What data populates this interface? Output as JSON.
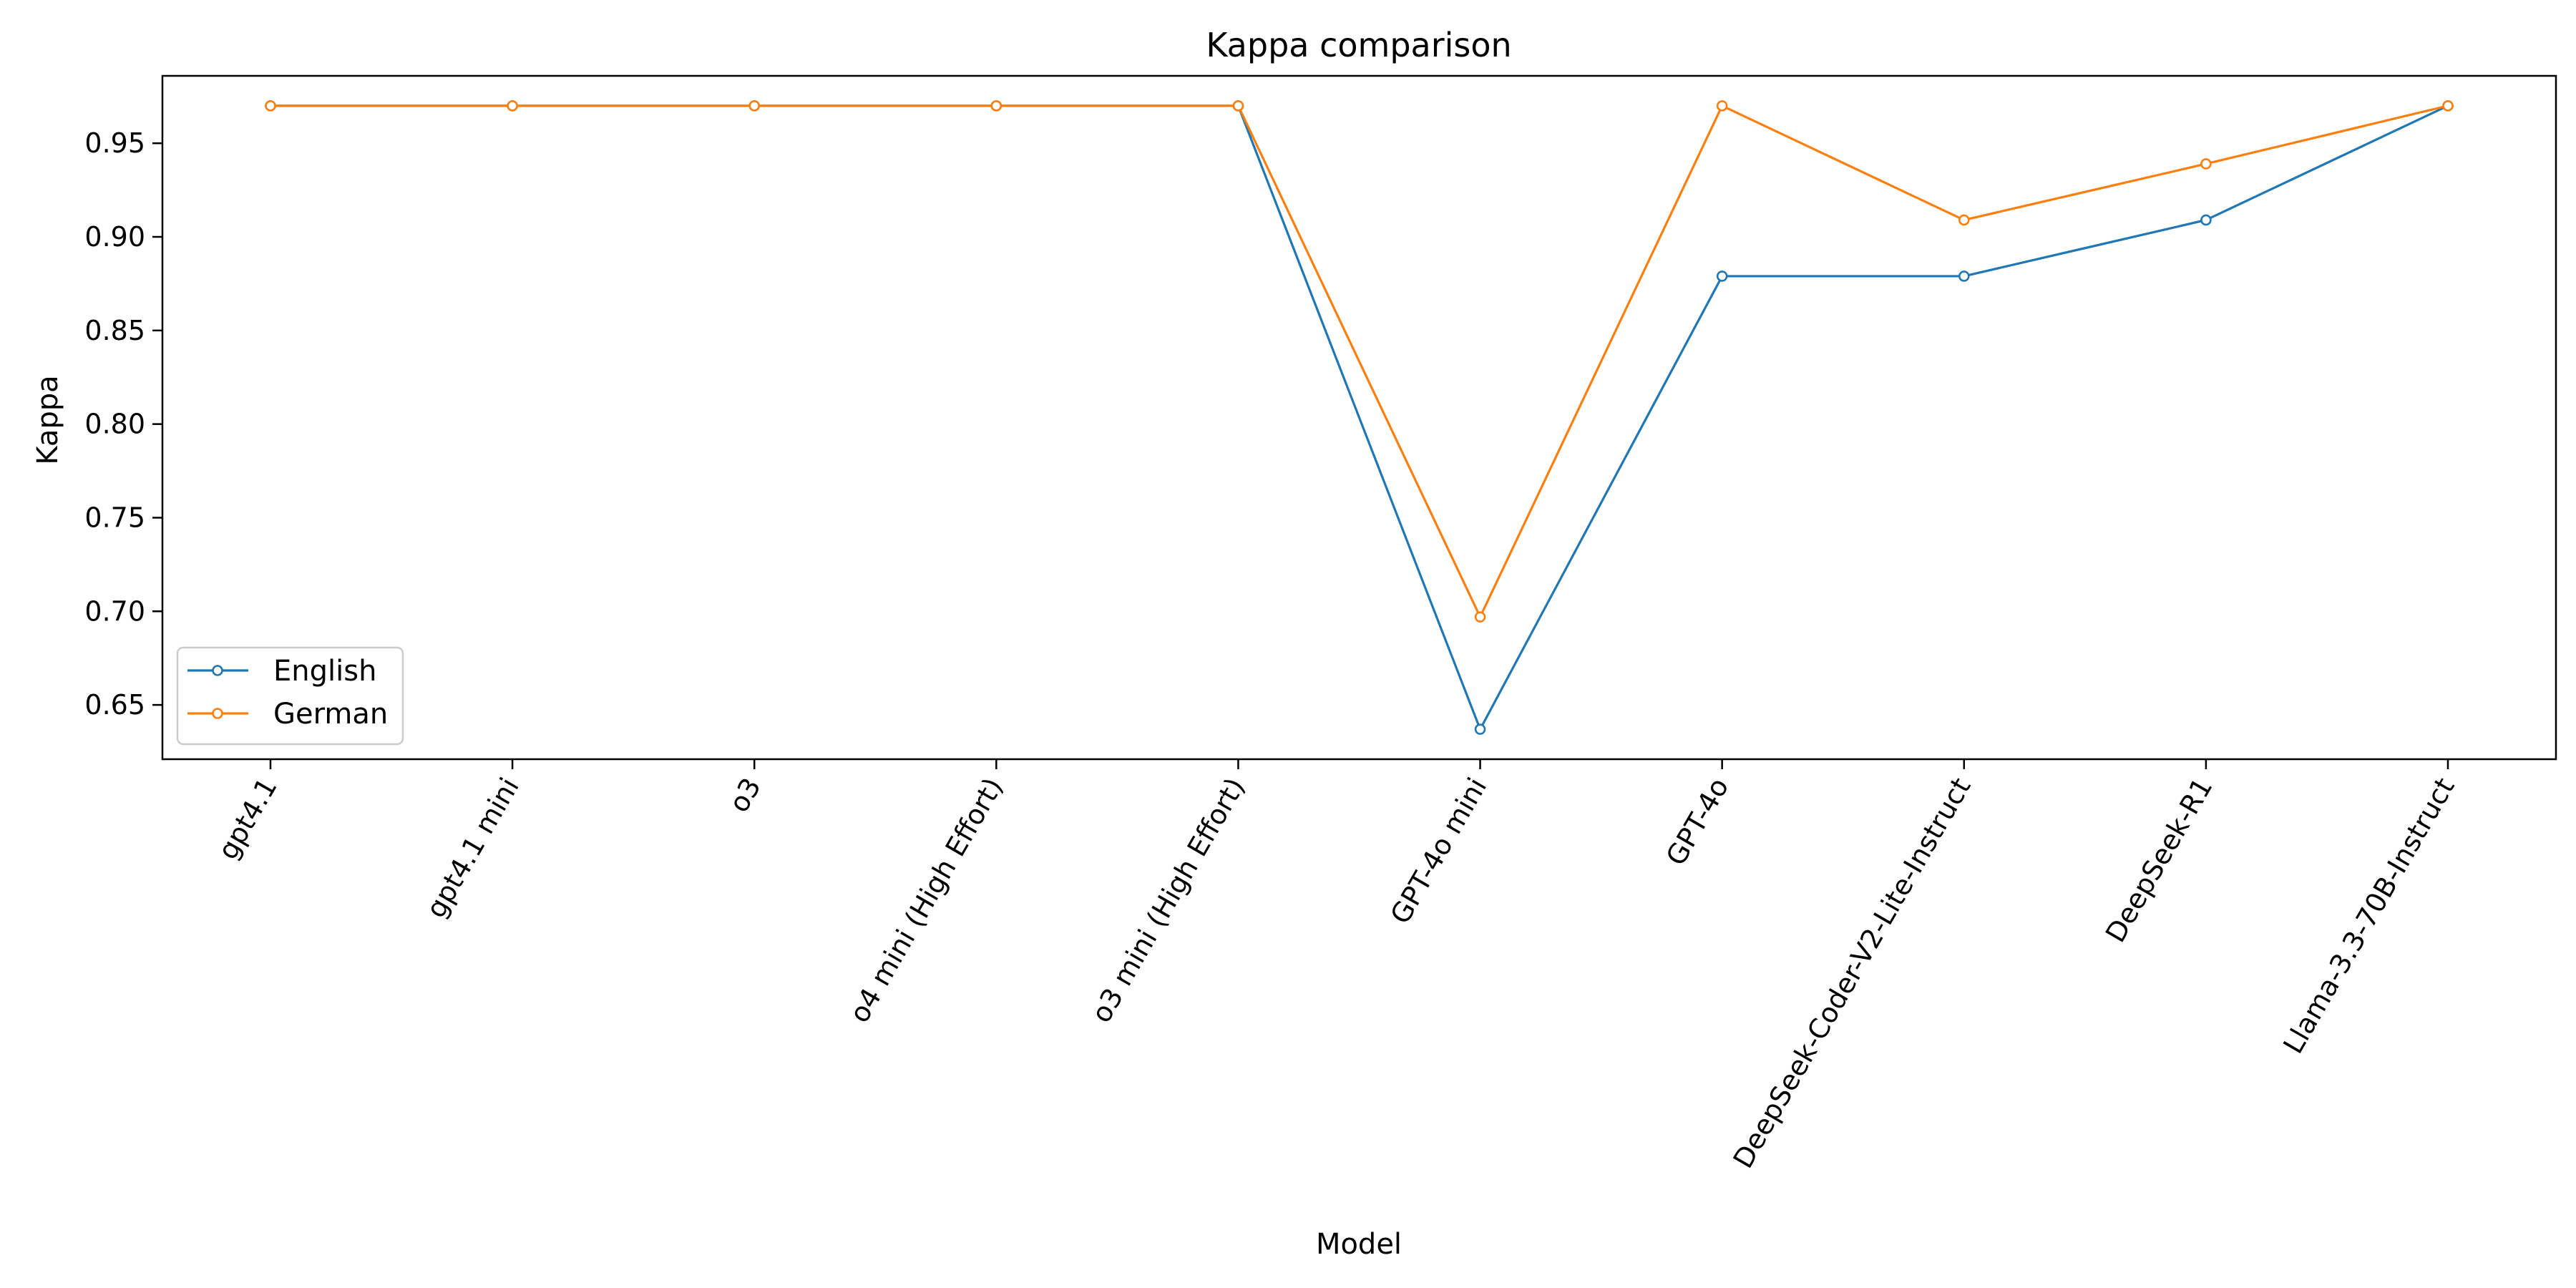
{
  "chart_data": {
    "type": "line",
    "title": "Kappa comparison",
    "xlabel": "Model",
    "ylabel": "Kappa",
    "categories": [
      "gpt4.1",
      "gpt4.1 mini",
      "o3",
      "o4 mini (High Effort)",
      "o3 mini (High Effort)",
      "GPT-4o mini",
      "GPT-4o",
      "DeepSeek-Coder-V2-Lite-Instruct",
      "DeepSeek-R1",
      "Llama-3.3-70B-Instruct"
    ],
    "series": [
      {
        "name": "English",
        "color": "#1f77b4",
        "values": [
          0.97,
          0.97,
          0.97,
          0.97,
          0.97,
          0.637,
          0.879,
          0.879,
          0.909,
          0.97
        ]
      },
      {
        "name": "German",
        "color": "#ff7f0e",
        "values": [
          0.97,
          0.97,
          0.97,
          0.97,
          0.97,
          0.697,
          0.97,
          0.909,
          0.939,
          0.97
        ]
      }
    ],
    "ylim": [
      0.621,
      0.986
    ],
    "yticks": [
      0.65,
      0.7,
      0.75,
      0.8,
      0.85,
      0.9,
      0.95
    ],
    "ytick_labels": [
      "0.65",
      "0.70",
      "0.75",
      "0.80",
      "0.85",
      "0.90",
      "0.95"
    ],
    "grid": false,
    "legend_position": "lower-left",
    "marker": "open-circle"
  }
}
